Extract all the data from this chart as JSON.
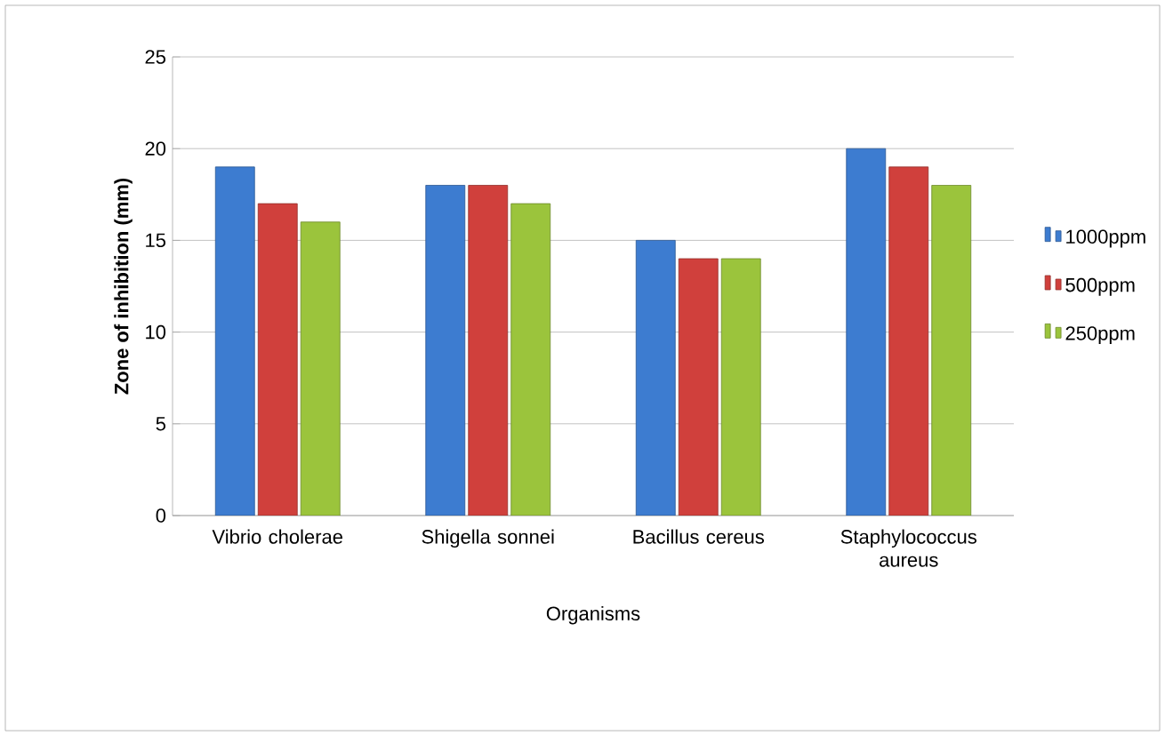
{
  "chart_data": {
    "type": "bar",
    "xlabel": "Organisms",
    "ylabel": "Zone of inhibition (mm)",
    "categories": [
      "Vibrio cholerae",
      "Shigella sonnei",
      "Bacillus cereus",
      "Staphylococcus aureus"
    ],
    "series": [
      {
        "name": "1000ppm",
        "color": "#3d7cd0",
        "values": [
          19,
          18,
          15,
          20
        ]
      },
      {
        "name": "500ppm",
        "color": "#d0403c",
        "values": [
          17,
          18,
          14,
          19
        ]
      },
      {
        "name": "250ppm",
        "color": "#9bc43c",
        "values": [
          16,
          17,
          14,
          18
        ]
      }
    ],
    "ylim": [
      0,
      25
    ],
    "yticks": [
      0,
      5,
      10,
      15,
      20,
      25
    ],
    "grid": "y",
    "legend": "right"
  }
}
